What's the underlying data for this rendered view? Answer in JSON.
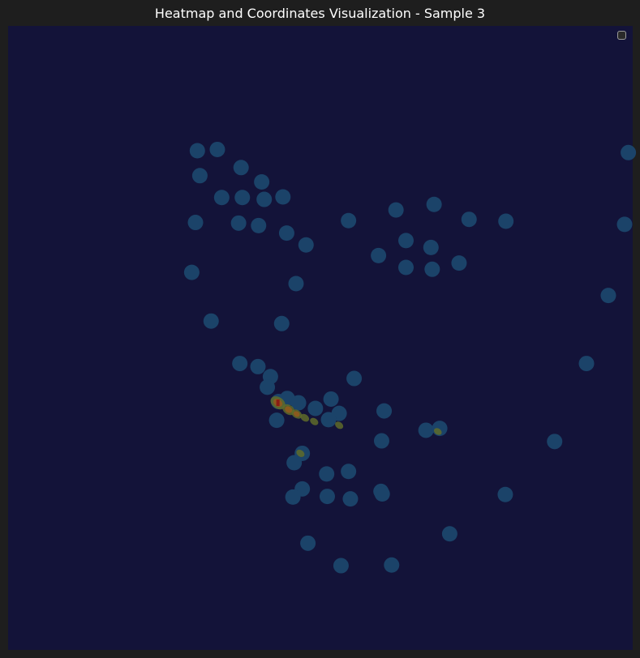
{
  "chart_data": {
    "type": "heatmap",
    "title": "Heatmap and Coordinates Visualization - Sample 3",
    "xlabel": "",
    "ylabel": "",
    "xlim": [
      0,
      1
    ],
    "ylim": [
      0,
      1
    ],
    "grid": false,
    "legend": "top-right",
    "colors": {
      "background": "#131339",
      "blob": "#1b4369",
      "hot_yellow": "#5f6b2a",
      "hot_orange": "#8a5a1f",
      "hot_red": "#8a1d14"
    },
    "points": [
      [
        0.303,
        0.2
      ],
      [
        0.335,
        0.198
      ],
      [
        0.373,
        0.227
      ],
      [
        0.307,
        0.24
      ],
      [
        0.406,
        0.25
      ],
      [
        0.342,
        0.275
      ],
      [
        0.375,
        0.275
      ],
      [
        0.41,
        0.278
      ],
      [
        0.44,
        0.274
      ],
      [
        0.3,
        0.315
      ],
      [
        0.369,
        0.316
      ],
      [
        0.401,
        0.32
      ],
      [
        0.446,
        0.332
      ],
      [
        0.477,
        0.351
      ],
      [
        0.545,
        0.312
      ],
      [
        0.621,
        0.295
      ],
      [
        0.682,
        0.286
      ],
      [
        0.738,
        0.31
      ],
      [
        0.637,
        0.344
      ],
      [
        0.677,
        0.355
      ],
      [
        0.593,
        0.368
      ],
      [
        0.637,
        0.387
      ],
      [
        0.679,
        0.39
      ],
      [
        0.722,
        0.38
      ],
      [
        0.797,
        0.313
      ],
      [
        0.993,
        0.203
      ],
      [
        0.987,
        0.318
      ],
      [
        0.961,
        0.432
      ],
      [
        0.294,
        0.395
      ],
      [
        0.461,
        0.413
      ],
      [
        0.325,
        0.473
      ],
      [
        0.438,
        0.477
      ],
      [
        0.371,
        0.541
      ],
      [
        0.4,
        0.546
      ],
      [
        0.42,
        0.562
      ],
      [
        0.415,
        0.579
      ],
      [
        0.433,
        0.602
      ],
      [
        0.447,
        0.597
      ],
      [
        0.465,
        0.604
      ],
      [
        0.492,
        0.613
      ],
      [
        0.517,
        0.598
      ],
      [
        0.53,
        0.621
      ],
      [
        0.513,
        0.631
      ],
      [
        0.43,
        0.632
      ],
      [
        0.554,
        0.565
      ],
      [
        0.602,
        0.617
      ],
      [
        0.669,
        0.648
      ],
      [
        0.691,
        0.645
      ],
      [
        0.926,
        0.541
      ],
      [
        0.875,
        0.666
      ],
      [
        0.471,
        0.685
      ],
      [
        0.458,
        0.7
      ],
      [
        0.51,
        0.718
      ],
      [
        0.545,
        0.714
      ],
      [
        0.471,
        0.742
      ],
      [
        0.456,
        0.755
      ],
      [
        0.598,
        0.665
      ],
      [
        0.597,
        0.746
      ],
      [
        0.511,
        0.754
      ],
      [
        0.548,
        0.758
      ],
      [
        0.599,
        0.75
      ],
      [
        0.796,
        0.751
      ],
      [
        0.707,
        0.814
      ],
      [
        0.48,
        0.829
      ],
      [
        0.533,
        0.865
      ],
      [
        0.614,
        0.864
      ]
    ],
    "hotspots": [
      {
        "x": 0.432,
        "y": 0.604,
        "level": 1.0
      },
      {
        "x": 0.449,
        "y": 0.615,
        "level": 0.7
      },
      {
        "x": 0.462,
        "y": 0.622,
        "level": 0.5
      },
      {
        "x": 0.475,
        "y": 0.628,
        "level": 0.3
      },
      {
        "x": 0.49,
        "y": 0.634,
        "level": 0.25
      },
      {
        "x": 0.53,
        "y": 0.64,
        "level": 0.25
      },
      {
        "x": 0.468,
        "y": 0.685,
        "level": 0.25
      },
      {
        "x": 0.688,
        "y": 0.65,
        "level": 0.2
      }
    ]
  }
}
